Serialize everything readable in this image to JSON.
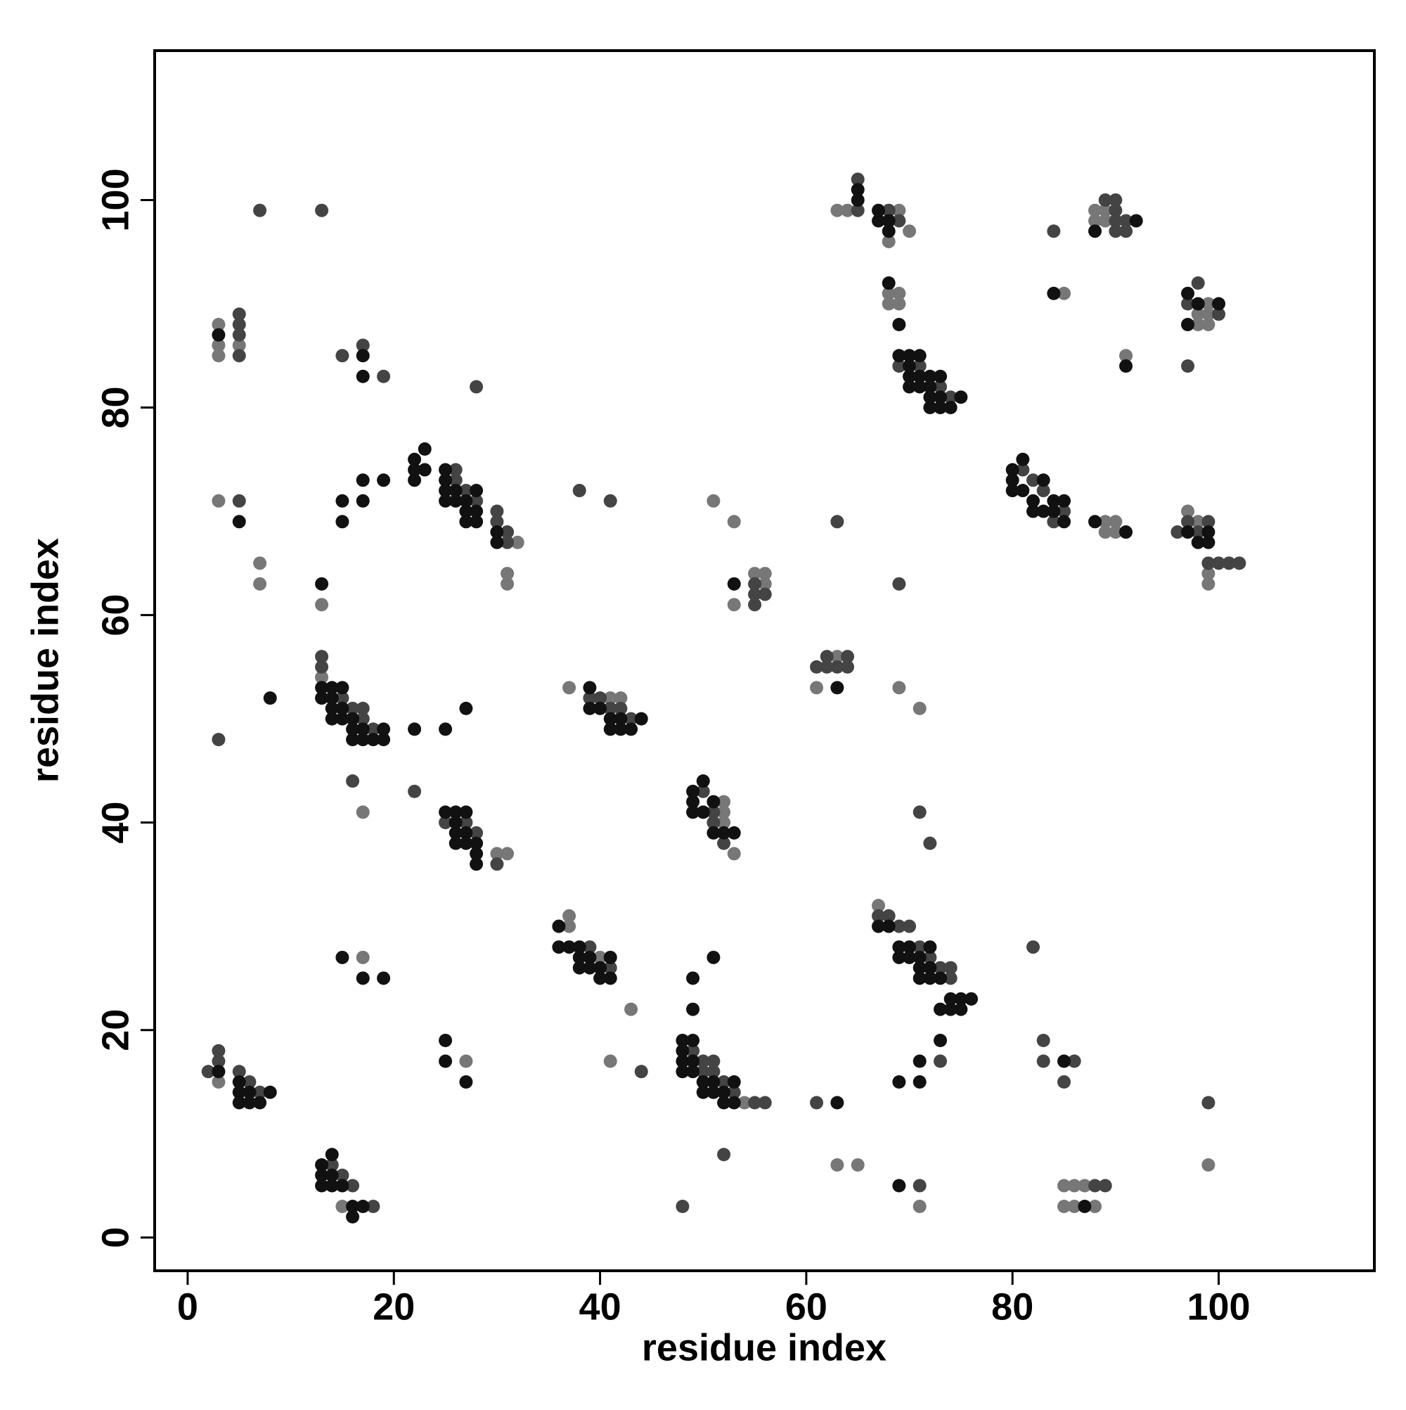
{
  "chart_data": {
    "type": "scatter",
    "x_label": "residue index",
    "y_label": "residue index",
    "xlim": [
      -3.2,
      115.1
    ],
    "ylim": [
      -3.2,
      114.4
    ],
    "xticks": [
      0,
      20,
      40,
      60,
      80,
      100
    ],
    "yticks": [
      0,
      20,
      40,
      60,
      80,
      100
    ],
    "series": [
      {
        "color": "#777777",
        "x": [
          3,
          15,
          13,
          17,
          30,
          31,
          32,
          31,
          31,
          3,
          3,
          3,
          5,
          3,
          7,
          7,
          13,
          17,
          27,
          37,
          37,
          40,
          43,
          41,
          37,
          41,
          42,
          52,
          52,
          52,
          53,
          54,
          51,
          53,
          53,
          55,
          56,
          56,
          63,
          61,
          69,
          71,
          63,
          64,
          69,
          70,
          68,
          68,
          69,
          68,
          69,
          67,
          63,
          65,
          71,
          89,
          90,
          89,
          90,
          85,
          91,
          85,
          86,
          87,
          85,
          86,
          88,
          88,
          89,
          88,
          89,
          99,
          98,
          99,
          98,
          99,
          97,
          98,
          99,
          99,
          99
        ],
        "y": [
          15,
          3,
          54,
          41,
          37,
          37,
          67,
          64,
          63,
          88,
          86,
          85,
          86,
          71,
          65,
          63,
          61,
          27,
          17,
          31,
          30,
          27,
          22,
          17,
          53,
          52,
          52,
          42,
          41,
          40,
          37,
          13,
          71,
          69,
          61,
          64,
          64,
          63,
          56,
          53,
          53,
          51,
          99,
          99,
          99,
          97,
          96,
          91,
          91,
          90,
          90,
          32,
          7,
          7,
          3,
          69,
          69,
          68,
          68,
          91,
          85,
          5,
          5,
          5,
          3,
          3,
          3,
          99,
          99,
          98,
          98,
          90,
          89,
          89,
          88,
          88,
          70,
          69,
          64,
          63,
          7
        ]
      },
      {
        "color": "#444444",
        "x": [
          2,
          3,
          3,
          5,
          6,
          7,
          14,
          15,
          16,
          18,
          13,
          13,
          15,
          16,
          17,
          17,
          18,
          3,
          16,
          22,
          25,
          27,
          28,
          30,
          26,
          26,
          27,
          28,
          30,
          30,
          31,
          31,
          5,
          5,
          5,
          5,
          15,
          17,
          19,
          28,
          7,
          13,
          5,
          39,
          41,
          44,
          39,
          40,
          41,
          42,
          43,
          38,
          41,
          50,
          51,
          51,
          52,
          49,
          50,
          51,
          50,
          51,
          52,
          53,
          55,
          56,
          52,
          48,
          55,
          55,
          56,
          55,
          61,
          62,
          64,
          62,
          63,
          64,
          63,
          69,
          71,
          72,
          65,
          65,
          68,
          69,
          69,
          71,
          73,
          74,
          67,
          68,
          69,
          70,
          71,
          72,
          73,
          74,
          74,
          73,
          61,
          71,
          81,
          82,
          83,
          85,
          84,
          84,
          82,
          83,
          83,
          86,
          85,
          88,
          89,
          89,
          90,
          90,
          90,
          91,
          90,
          91,
          98,
          97,
          100,
          97,
          96,
          97,
          99,
          98,
          99,
          100,
          101,
          102,
          99
        ],
        "y": [
          16,
          17,
          18,
          16,
          15,
          14,
          7,
          6,
          5,
          3,
          56,
          55,
          52,
          51,
          51,
          50,
          49,
          48,
          44,
          43,
          40,
          40,
          39,
          36,
          74,
          73,
          72,
          71,
          70,
          69,
          68,
          67,
          89,
          88,
          87,
          85,
          85,
          86,
          83,
          82,
          99,
          99,
          71,
          28,
          26,
          16,
          52,
          52,
          51,
          51,
          50,
          72,
          71,
          43,
          41,
          40,
          38,
          18,
          17,
          17,
          16,
          16,
          15,
          14,
          13,
          13,
          8,
          3,
          63,
          62,
          62,
          61,
          55,
          56,
          56,
          55,
          55,
          55,
          69,
          63,
          41,
          38,
          102,
          99,
          99,
          98,
          84,
          84,
          82,
          81,
          31,
          31,
          30,
          30,
          28,
          27,
          26,
          26,
          25,
          17,
          13,
          5,
          74,
          73,
          72,
          70,
          69,
          97,
          28,
          19,
          17,
          17,
          15,
          5,
          5,
          100,
          100,
          99,
          98,
          98,
          97,
          97,
          92,
          90,
          89,
          84,
          68,
          69,
          69,
          68,
          65,
          65,
          65,
          65,
          13
        ]
      },
      {
        "color": "#111111",
        "x": [
          3,
          5,
          5,
          6,
          8,
          5,
          6,
          7,
          13,
          14,
          13,
          14,
          13,
          14,
          15,
          16,
          17,
          16,
          13,
          14,
          15,
          13,
          14,
          14,
          15,
          14,
          15,
          16,
          16,
          17,
          19,
          16,
          17,
          18,
          19,
          8,
          22,
          25,
          27,
          25,
          26,
          27,
          26,
          26,
          27,
          26,
          27,
          28,
          28,
          28,
          22,
          23,
          22,
          23,
          22,
          25,
          25,
          25,
          26,
          28,
          25,
          26,
          27,
          27,
          28,
          27,
          28,
          30,
          30,
          3,
          17,
          17,
          5,
          15,
          15,
          17,
          17,
          19,
          13,
          15,
          17,
          19,
          25,
          25,
          27,
          36,
          36,
          37,
          38,
          38,
          39,
          41,
          38,
          39,
          40,
          40,
          41,
          39,
          39,
          40,
          41,
          42,
          44,
          41,
          42,
          43,
          49,
          50,
          49,
          49,
          50,
          51,
          51,
          52,
          53,
          48,
          49,
          48,
          48,
          49,
          48,
          49,
          50,
          51,
          53,
          50,
          51,
          52,
          52,
          53,
          49,
          49,
          51,
          53,
          63,
          65,
          65,
          67,
          67,
          68,
          68,
          68,
          69,
          69,
          70,
          71,
          70,
          70,
          71,
          72,
          73,
          70,
          71,
          72,
          72,
          73,
          75,
          72,
          73,
          74,
          67,
          68,
          69,
          70,
          72,
          69,
          70,
          71,
          71,
          72,
          71,
          72,
          73,
          74,
          75,
          76,
          73,
          74,
          75,
          73,
          71,
          69,
          71,
          63,
          69,
          80,
          81,
          80,
          83,
          80,
          81,
          82,
          84,
          85,
          82,
          83,
          84,
          85,
          88,
          91,
          84,
          91,
          85,
          87,
          92,
          88,
          97,
          98,
          100,
          97,
          97,
          99,
          98,
          99
        ],
        "y": [
          16,
          15,
          14,
          14,
          14,
          13,
          13,
          13,
          7,
          8,
          6,
          6,
          5,
          5,
          5,
          3,
          3,
          2,
          53,
          53,
          53,
          52,
          52,
          51,
          51,
          50,
          50,
          50,
          49,
          49,
          49,
          48,
          48,
          48,
          48,
          52,
          49,
          49,
          51,
          41,
          41,
          41,
          40,
          39,
          39,
          38,
          38,
          38,
          37,
          36,
          75,
          76,
          74,
          74,
          73,
          74,
          73,
          72,
          72,
          72,
          71,
          71,
          71,
          70,
          70,
          69,
          69,
          68,
          67,
          87,
          85,
          83,
          69,
          71,
          69,
          73,
          71,
          73,
          63,
          27,
          25,
          25,
          19,
          17,
          15,
          30,
          28,
          28,
          28,
          27,
          27,
          27,
          26,
          26,
          26,
          25,
          25,
          53,
          51,
          51,
          50,
          50,
          50,
          49,
          49,
          49,
          43,
          44,
          42,
          41,
          41,
          42,
          39,
          39,
          39,
          19,
          19,
          18,
          17,
          17,
          16,
          16,
          15,
          15,
          15,
          14,
          14,
          14,
          13,
          13,
          25,
          22,
          27,
          63,
          53,
          101,
          100,
          99,
          98,
          98,
          97,
          92,
          88,
          85,
          85,
          85,
          84,
          83,
          83,
          83,
          83,
          82,
          82,
          82,
          81,
          81,
          81,
          80,
          80,
          80,
          30,
          30,
          28,
          28,
          28,
          27,
          27,
          27,
          26,
          26,
          25,
          25,
          25,
          23,
          23,
          23,
          22,
          22,
          22,
          19,
          17,
          15,
          15,
          13,
          5,
          74,
          75,
          73,
          73,
          72,
          72,
          71,
          71,
          71,
          70,
          70,
          70,
          69,
          69,
          68,
          91,
          84,
          17,
          3,
          98,
          97,
          91,
          90,
          90,
          88,
          68,
          68,
          67,
          67
        ]
      }
    ]
  }
}
